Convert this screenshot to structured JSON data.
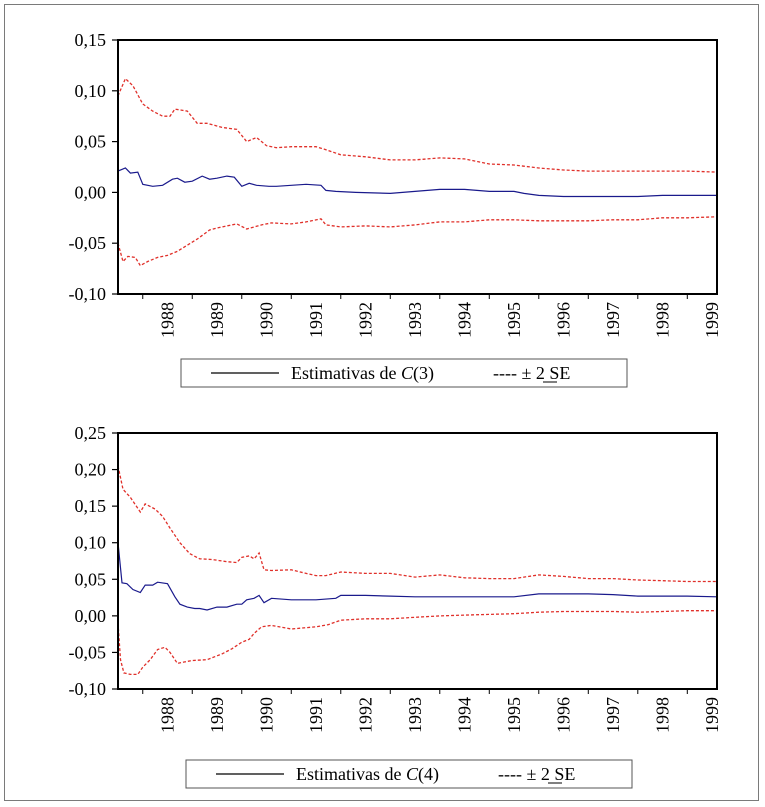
{
  "chart_data": [
    {
      "type": "line",
      "title": "",
      "xlabel": "",
      "ylabel": "",
      "ylim": [
        -0.1,
        0.15
      ],
      "yticks": [
        "0,15",
        "0,10",
        "0,05",
        "0,00",
        "-0,05",
        "-0,10"
      ],
      "xlim": [
        1987.5,
        1999.6
      ],
      "xticks": [
        "1988",
        "1989",
        "1990",
        "1991",
        "1992",
        "1993",
        "1994",
        "1995",
        "1996",
        "1997",
        "1998",
        "1999"
      ],
      "grid": false,
      "legend_position": "bottom",
      "legend": {
        "main": "Estimativas de ",
        "coef": "C",
        "arg": "(3)",
        "band": "---- ± 2 SE"
      },
      "series": [
        {
          "name": "Estimativas de C(3)",
          "style": "solid",
          "color": "#1a1a8c",
          "x": [
            1987.5,
            1987.65,
            1987.75,
            1987.9,
            1988.0,
            1988.2,
            1988.4,
            1988.6,
            1988.7,
            1988.85,
            1989.0,
            1989.2,
            1989.35,
            1989.5,
            1989.7,
            1989.85,
            1990.0,
            1990.15,
            1990.3,
            1990.55,
            1990.7,
            1991.0,
            1991.3,
            1991.6,
            1991.7,
            1991.9,
            1992.3,
            1993.0,
            1993.5,
            1994.0,
            1994.5,
            1995.0,
            1995.5,
            1995.7,
            1996.0,
            1996.5,
            1997.0,
            1997.5,
            1998.0,
            1998.5,
            1999.0,
            1999.6
          ],
          "y": [
            0.021,
            0.024,
            0.019,
            0.02,
            0.008,
            0.006,
            0.007,
            0.013,
            0.014,
            0.01,
            0.011,
            0.016,
            0.013,
            0.014,
            0.016,
            0.015,
            0.006,
            0.009,
            0.007,
            0.006,
            0.006,
            0.007,
            0.008,
            0.007,
            0.002,
            0.001,
            0.0,
            -0.001,
            0.001,
            0.003,
            0.003,
            0.001,
            0.001,
            -0.001,
            -0.003,
            -0.004,
            -0.004,
            -0.004,
            -0.004,
            -0.003,
            -0.003,
            -0.003
          ]
        },
        {
          "name": "+2 SE",
          "style": "dashed",
          "color": "#e0302a",
          "x": [
            1987.5,
            1987.65,
            1987.8,
            1988.0,
            1988.2,
            1988.4,
            1988.55,
            1988.65,
            1988.9,
            1989.1,
            1989.3,
            1989.6,
            1989.9,
            1990.1,
            1990.3,
            1990.5,
            1990.7,
            1991.0,
            1991.5,
            1991.7,
            1992.0,
            1992.5,
            1993.0,
            1993.5,
            1994.0,
            1994.5,
            1995.0,
            1995.5,
            1996.0,
            1996.5,
            1997.0,
            1997.5,
            1998.0,
            1998.5,
            1999.0,
            1999.6
          ],
          "y": [
            0.095,
            0.112,
            0.105,
            0.087,
            0.08,
            0.075,
            0.075,
            0.082,
            0.08,
            0.068,
            0.068,
            0.064,
            0.062,
            0.05,
            0.054,
            0.046,
            0.044,
            0.045,
            0.045,
            0.042,
            0.037,
            0.035,
            0.032,
            0.032,
            0.034,
            0.033,
            0.028,
            0.027,
            0.024,
            0.022,
            0.021,
            0.021,
            0.021,
            0.021,
            0.021,
            0.02
          ]
        },
        {
          "name": "-2 SE",
          "style": "dashed",
          "color": "#e0302a",
          "x": [
            1987.5,
            1987.6,
            1987.7,
            1987.85,
            1987.95,
            1988.1,
            1988.3,
            1988.5,
            1988.7,
            1988.9,
            1989.1,
            1989.35,
            1989.5,
            1989.7,
            1989.9,
            1990.1,
            1990.4,
            1990.6,
            1991.0,
            1991.3,
            1991.6,
            1991.7,
            1992.0,
            1992.5,
            1993.0,
            1993.5,
            1994.0,
            1994.5,
            1995.0,
            1995.5,
            1996.0,
            1996.5,
            1997.0,
            1997.5,
            1998.0,
            1998.5,
            1999.0,
            1999.6
          ],
          "y": [
            -0.05,
            -0.068,
            -0.063,
            -0.064,
            -0.072,
            -0.068,
            -0.064,
            -0.062,
            -0.058,
            -0.052,
            -0.046,
            -0.037,
            -0.035,
            -0.033,
            -0.031,
            -0.036,
            -0.032,
            -0.03,
            -0.031,
            -0.029,
            -0.026,
            -0.032,
            -0.034,
            -0.033,
            -0.034,
            -0.032,
            -0.029,
            -0.029,
            -0.027,
            -0.027,
            -0.028,
            -0.028,
            -0.028,
            -0.027,
            -0.027,
            -0.025,
            -0.025,
            -0.024
          ]
        }
      ]
    },
    {
      "type": "line",
      "title": "",
      "xlabel": "",
      "ylabel": "",
      "ylim": [
        -0.1,
        0.25
      ],
      "yticks": [
        "0,25",
        "0,20",
        "0,15",
        "0,10",
        "0,05",
        "0,00",
        "-0,05",
        "-0,10"
      ],
      "xlim": [
        1987.5,
        1999.6
      ],
      "xticks": [
        "1988",
        "1989",
        "1990",
        "1991",
        "1992",
        "1993",
        "1994",
        "1995",
        "1996",
        "1997",
        "1998",
        "1999"
      ],
      "grid": false,
      "legend_position": "bottom",
      "legend": {
        "main": "Estimativas de ",
        "coef": "C",
        "arg": "(4)",
        "band": "---- ± 2 SE"
      },
      "series": [
        {
          "name": "Estimativas de C(4)",
          "style": "solid",
          "color": "#1a1a8c",
          "x": [
            1987.5,
            1987.58,
            1987.68,
            1987.8,
            1987.95,
            1988.05,
            1988.2,
            1988.3,
            1988.5,
            1988.65,
            1988.75,
            1988.9,
            1989.05,
            1989.15,
            1989.3,
            1989.5,
            1989.7,
            1989.9,
            1990.0,
            1990.1,
            1990.25,
            1990.35,
            1990.45,
            1990.6,
            1991.0,
            1991.5,
            1991.9,
            1992.0,
            1992.5,
            1993.0,
            1993.5,
            1994.0,
            1994.5,
            1995.0,
            1995.5,
            1996.0,
            1996.5,
            1997.0,
            1997.5,
            1998.0,
            1998.5,
            1999.0,
            1999.6
          ],
          "y": [
            0.1,
            0.045,
            0.044,
            0.036,
            0.032,
            0.042,
            0.042,
            0.046,
            0.044,
            0.026,
            0.016,
            0.012,
            0.01,
            0.01,
            0.008,
            0.012,
            0.012,
            0.016,
            0.016,
            0.022,
            0.024,
            0.028,
            0.018,
            0.024,
            0.022,
            0.022,
            0.024,
            0.028,
            0.028,
            0.027,
            0.026,
            0.026,
            0.026,
            0.026,
            0.026,
            0.03,
            0.03,
            0.03,
            0.029,
            0.027,
            0.027,
            0.027,
            0.026
          ]
        },
        {
          "name": "+2 SE",
          "style": "dashed",
          "color": "#e0302a",
          "x": [
            1987.5,
            1987.6,
            1987.75,
            1987.95,
            1988.05,
            1988.25,
            1988.4,
            1988.55,
            1988.75,
            1988.95,
            1989.15,
            1989.4,
            1989.7,
            1989.9,
            1990.0,
            1990.15,
            1990.25,
            1990.35,
            1990.45,
            1990.6,
            1991.0,
            1991.3,
            1991.5,
            1991.7,
            1992.0,
            1992.5,
            1993.0,
            1993.5,
            1994.0,
            1994.5,
            1995.0,
            1995.5,
            1996.0,
            1996.5,
            1997.0,
            1997.5,
            1998.0,
            1998.5,
            1999.0,
            1999.6
          ],
          "y": [
            0.205,
            0.173,
            0.162,
            0.142,
            0.153,
            0.146,
            0.136,
            0.12,
            0.1,
            0.085,
            0.078,
            0.077,
            0.074,
            0.073,
            0.08,
            0.082,
            0.078,
            0.086,
            0.063,
            0.062,
            0.063,
            0.058,
            0.055,
            0.055,
            0.06,
            0.058,
            0.058,
            0.053,
            0.056,
            0.052,
            0.051,
            0.051,
            0.056,
            0.054,
            0.051,
            0.051,
            0.049,
            0.048,
            0.047,
            0.047
          ]
        },
        {
          "name": "-2 SE",
          "style": "dashed",
          "color": "#e0302a",
          "x": [
            1987.5,
            1987.55,
            1987.62,
            1987.75,
            1987.9,
            1988.0,
            1988.15,
            1988.3,
            1988.45,
            1988.55,
            1988.7,
            1988.85,
            1989.0,
            1989.3,
            1989.6,
            1989.8,
            1990.0,
            1990.15,
            1990.25,
            1990.4,
            1990.6,
            1991.0,
            1991.5,
            1991.75,
            1992.0,
            1992.5,
            1993.0,
            1993.5,
            1994.0,
            1994.5,
            1995.0,
            1995.5,
            1996.0,
            1996.5,
            1997.0,
            1997.5,
            1998.0,
            1998.5,
            1999.0,
            1999.6
          ],
          "y": [
            -0.01,
            -0.06,
            -0.078,
            -0.08,
            -0.08,
            -0.07,
            -0.06,
            -0.046,
            -0.043,
            -0.05,
            -0.065,
            -0.063,
            -0.061,
            -0.06,
            -0.052,
            -0.045,
            -0.036,
            -0.032,
            -0.024,
            -0.015,
            -0.013,
            -0.018,
            -0.015,
            -0.012,
            -0.006,
            -0.004,
            -0.004,
            -0.002,
            0.0,
            0.001,
            0.002,
            0.003,
            0.005,
            0.006,
            0.006,
            0.006,
            0.005,
            0.006,
            0.007,
            0.007
          ]
        }
      ]
    }
  ]
}
